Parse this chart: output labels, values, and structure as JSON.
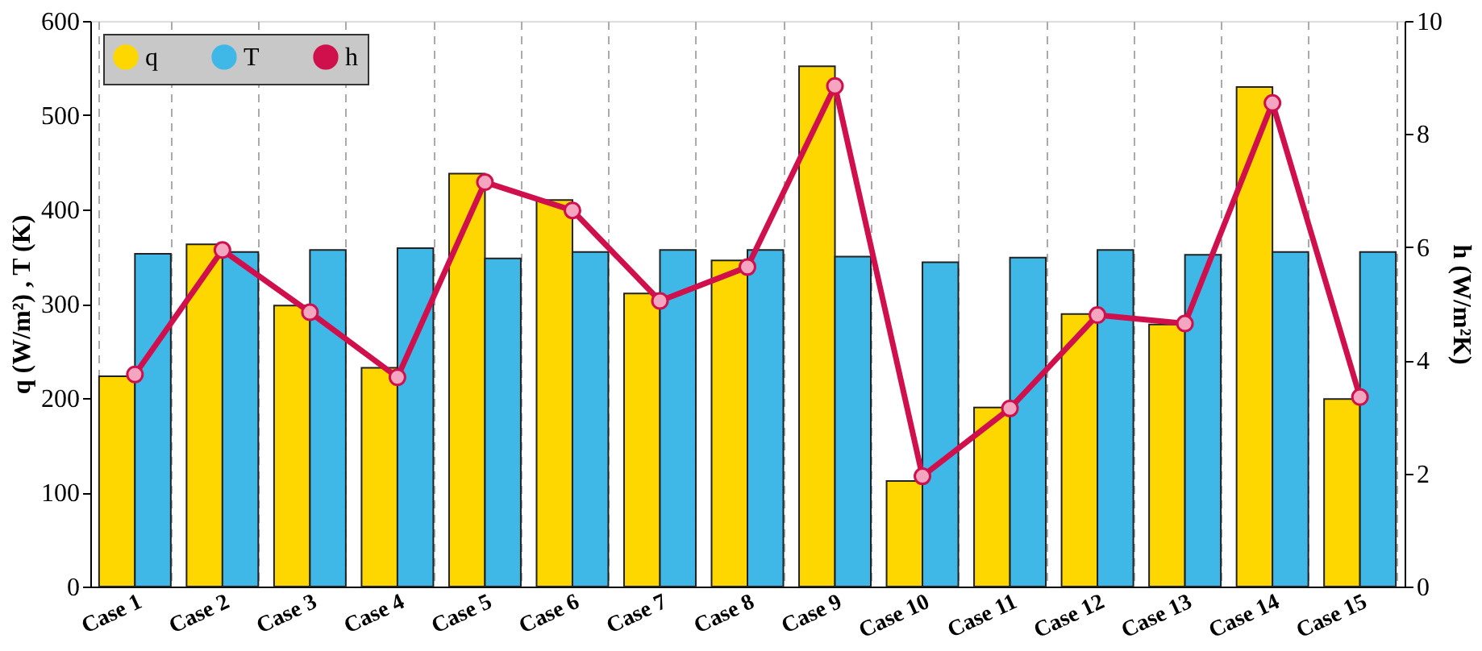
{
  "chart_data": {
    "type": "bar",
    "categories": [
      "Case 1",
      "Case 2",
      "Case 3",
      "Case 4",
      "Case 5",
      "Case 6",
      "Case 7",
      "Case 8",
      "Case 9",
      "Case 10",
      "Case 11",
      "Case 12",
      "Case 13",
      "Case 14",
      "Case 15"
    ],
    "series": [
      {
        "name": "q",
        "color": "#ffd700",
        "values": [
          223,
          363,
          298,
          232,
          438,
          410,
          311,
          346,
          552,
          112,
          190,
          289,
          278,
          530,
          199
        ]
      },
      {
        "name": "T",
        "color": "#3fb8e8",
        "values": [
          353,
          355,
          357,
          359,
          348,
          355,
          357,
          357,
          350,
          344,
          349,
          357,
          352,
          355,
          355
        ]
      },
      {
        "name": "h",
        "type": "line",
        "axis": "y2",
        "color": "#d0104c",
        "values": [
          3.75,
          5.95,
          4.85,
          3.7,
          7.15,
          6.65,
          5.05,
          5.65,
          8.85,
          1.95,
          3.15,
          4.8,
          4.65,
          8.55,
          3.35
        ]
      }
    ],
    "ylabel": "q (W/m²) , T (K)",
    "y2label": "h (W/m²K)",
    "ylim": [
      0,
      600
    ],
    "yticks": [
      0,
      100,
      200,
      300,
      400,
      500,
      600
    ],
    "y2lim": [
      0,
      10
    ],
    "y2ticks": [
      0,
      2,
      4,
      6,
      8,
      10
    ],
    "grid": "x",
    "legend": "top left",
    "marker": "circle",
    "line_style": "solid"
  }
}
